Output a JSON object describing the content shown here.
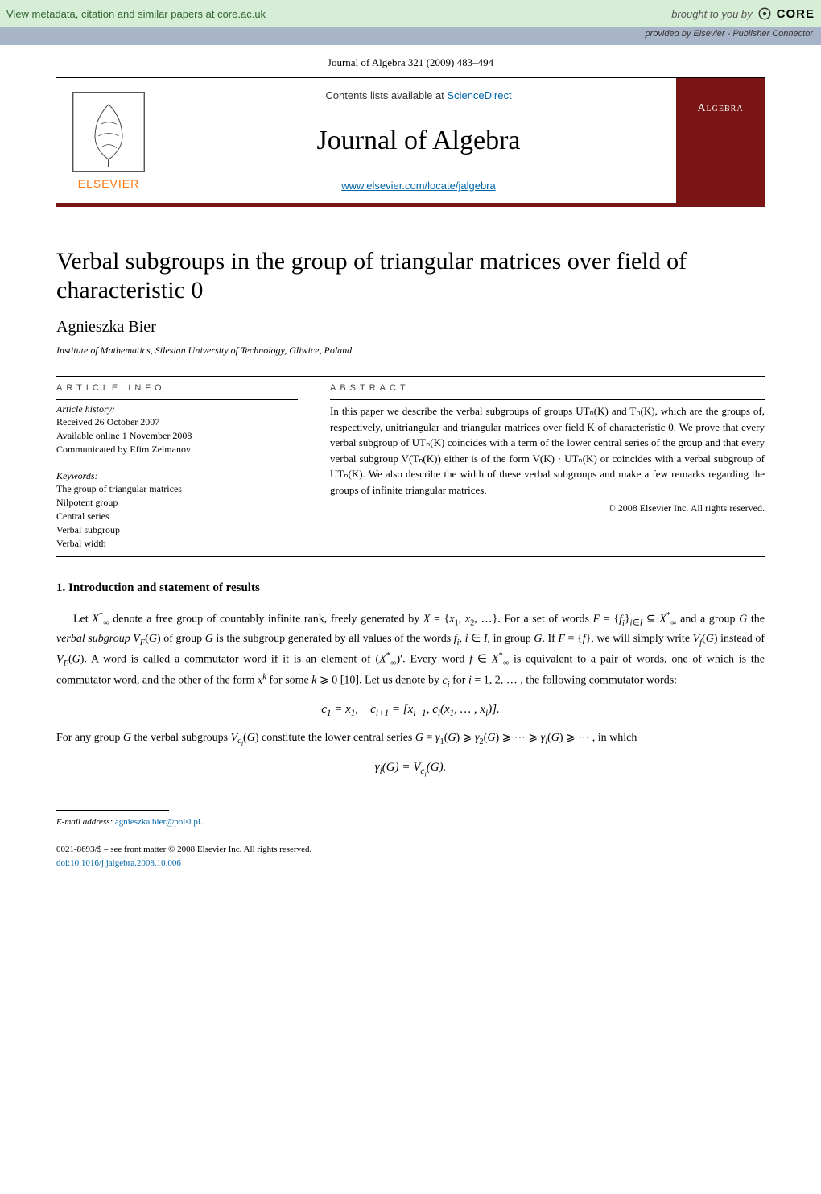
{
  "banner": {
    "left_prefix": "View metadata, citation and similar papers at ",
    "left_link": "core.ac.uk",
    "brought": "brought to you by ",
    "core": "CORE",
    "provided": "provided by Elsevier - Publisher Connector"
  },
  "journal_ref": "Journal of Algebra 321 (2009) 483–494",
  "header": {
    "contents_prefix": "Contents lists available at ",
    "contents_link": "ScienceDirect",
    "journal_title": "Journal of Algebra",
    "journal_url": "www.elsevier.com/locate/jalgebra",
    "elsevier_brand": "ELSEVIER",
    "cover_title": "Algebra"
  },
  "paper": {
    "title": "Verbal subgroups in the group of triangular matrices over field of characteristic 0",
    "author": "Agnieszka Bier",
    "affiliation": "Institute of Mathematics, Silesian University of Technology, Gliwice, Poland"
  },
  "article_info": {
    "header": "ARTICLE INFO",
    "history_label": "Article history:",
    "received": "Received 26 October 2007",
    "available": "Available online 1 November 2008",
    "communicated": "Communicated by Efim Zelmanov",
    "keywords_label": "Keywords:",
    "keywords": [
      "The group of triangular matrices",
      "Nilpotent group",
      "Central series",
      "Verbal subgroup",
      "Verbal width"
    ]
  },
  "abstract": {
    "header": "ABSTRACT",
    "text": "In this paper we describe the verbal subgroups of groups UTₙ(K) and Tₙ(K), which are the groups of, respectively, unitriangular and triangular matrices over field K of characteristic 0. We prove that every verbal subgroup of UTₙ(K) coincides with a term of the lower central series of the group and that every verbal subgroup V(Tₙ(K)) either is of the form V(K) · UTₙ(K) or coincides with a verbal subgroup of UTₙ(K). We also describe the width of these verbal subgroups and make a few remarks regarding the groups of infinite triangular matrices.",
    "copyright": "© 2008 Elsevier Inc. All rights reserved."
  },
  "section1": {
    "heading": "1. Introduction and statement of results",
    "para1_html": "Let <i>X</i><sup>*</sup><sub>∞</sub> denote a free group of countably infinite rank, freely generated by <i>X</i> = {<i>x</i><sub>1</sub>, <i>x</i><sub>2</sub>, …}. For a set of words <i>F</i> = {<i>f<sub>i</sub></i>}<sub><i>i</i>∈<i>I</i></sub> ⊆ <i>X</i><sup>*</sup><sub>∞</sub> and a group <i>G</i> the <i>verbal subgroup V<sub>F</sub></i>(<i>G</i>) of group <i>G</i> is the subgroup generated by all values of the words <i>f<sub>i</sub></i>, <i>i</i> ∈ <i>I</i>, in group <i>G</i>. If <i>F</i> = {<i>f</i>}, we will simply write <i>V<sub>f</sub></i>(<i>G</i>) instead of <i>V<sub>F</sub></i>(<i>G</i>). A word is called a commutator word if it is an element of (<i>X</i><sup>*</sup><sub>∞</sub>)′. Every word <i>f</i> ∈ <i>X</i><sup>*</sup><sub>∞</sub> is equivalent to a pair of words, one of which is the commutator word, and the other of the form <i>x<sup>k</sup></i> for some <i>k</i> ⩾ 0 [10]. Let us denote by <i>c<sub>i</sub></i> for <i>i</i> = 1, 2, … , the following commutator words:",
    "math1_html": "<i>c</i><sub>1</sub> = <i>x</i><sub>1</sub>,&nbsp;&nbsp;&nbsp;&nbsp;<i>c</i><sub><i>i</i>+1</sub> = [<i>x</i><sub><i>i</i>+1</sub>, <i>c<sub>i</sub></i>(<i>x</i><sub>1</sub>, … , <i>x<sub>i</sub></i>)].",
    "para2_html": "For any group <i>G</i> the verbal subgroups <i>V<sub>c<sub>i</sub></sub></i>(<i>G</i>) constitute the lower central series <i>G</i> = <i>γ</i><sub>1</sub>(<i>G</i>) ⩾ <i>γ</i><sub>2</sub>(<i>G</i>) ⩾ ⋯ ⩾ <i>γ<sub>l</sub></i>(<i>G</i>) ⩾ ⋯ , in which",
    "math2_html": "<i>γ<sub>i</sub></i>(<i>G</i>) = <i>V<sub>c<sub>i</sub></sub></i>(<i>G</i>)."
  },
  "footnotes": {
    "email_label": "E-mail address: ",
    "email": "agnieszka.bier@polsl.pl",
    "front_matter": "0021-8693/$ – see front matter  © 2008 Elsevier Inc. All rights reserved.",
    "doi": "doi:10.1016/j.jalgebra.2008.10.006"
  },
  "colors": {
    "banner_bg": "#d5eed5",
    "provided_bg": "#a8b4c8",
    "maroon": "#7a1515",
    "link": "#0066aa",
    "elsevier_orange": "#ff7711"
  }
}
